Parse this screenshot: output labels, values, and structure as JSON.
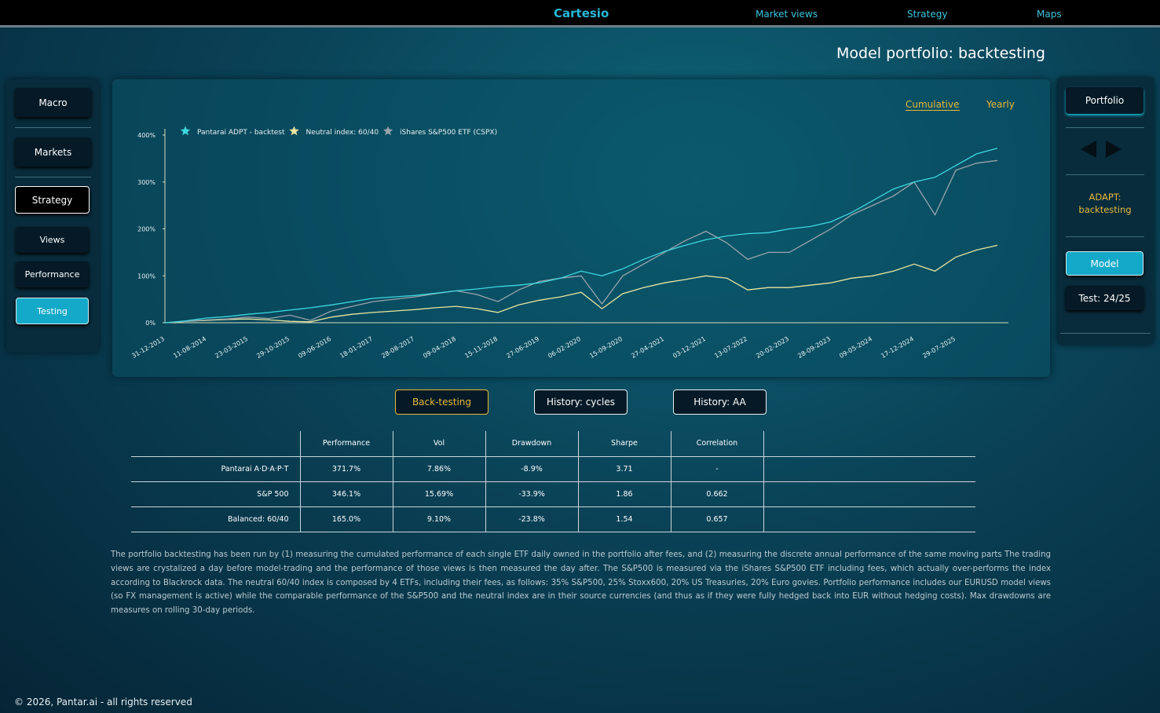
{
  "nav": {
    "brand": "Cartesio",
    "links": [
      "Market views",
      "Strategy",
      "Maps"
    ]
  },
  "page_title": "Model portfolio: backtesting",
  "left_menu": [
    "Macro",
    "Markets",
    "Strategy",
    "Views",
    "Performance",
    "Testing"
  ],
  "right_panel": {
    "portfolio": "Portfolio",
    "label": "ADAPT: backtesting",
    "model": "Model",
    "test": "Test: 24/25"
  },
  "chart_tabs": [
    "Cumulative",
    "Yearly"
  ],
  "chart_data": {
    "type": "line",
    "categories": [
      "31-12-2013",
      null,
      "11-08-2014",
      null,
      "23-03-2015",
      null,
      "29-10-2015",
      null,
      "09-06-2016",
      null,
      "18-01-2017",
      null,
      "28-08-2017",
      null,
      "09-04-2018",
      null,
      "15-11-2018",
      null,
      "27-06-2019",
      null,
      "06-02-2020",
      null,
      "15-09-2020",
      null,
      "27-04-2021",
      null,
      "03-12-2021",
      null,
      "13-07-2022",
      null,
      "20-02-2023",
      null,
      "28-09-2023",
      null,
      "09-05-2024",
      null,
      "17-12-2024",
      null,
      "29-07-2025",
      null,
      null
    ],
    "series": [
      {
        "name": "Pantarai ADPT - backtest",
        "color": "#3ed8e0",
        "values": [
          0,
          4,
          10,
          13,
          18,
          22,
          27,
          32,
          38,
          45,
          52,
          55,
          58,
          63,
          68,
          72,
          77,
          80,
          85,
          95,
          110,
          100,
          115,
          135,
          152,
          165,
          177,
          185,
          190,
          192,
          200,
          205,
          215,
          235,
          260,
          285,
          300,
          310,
          335,
          360,
          372
        ]
      },
      {
        "name": "Neutral index: 60/40",
        "color": "#e8e6a0",
        "values": [
          0,
          3,
          5,
          7,
          8,
          6,
          3,
          2,
          12,
          18,
          22,
          25,
          28,
          32,
          35,
          30,
          22,
          38,
          48,
          55,
          65,
          30,
          62,
          75,
          85,
          92,
          100,
          95,
          70,
          75,
          75,
          80,
          85,
          95,
          100,
          110,
          125,
          110,
          140,
          155,
          165
        ]
      },
      {
        "name": "iShares S&P500 ETF (CSPX)",
        "color": "#9aa4ab",
        "values": [
          0,
          3,
          6,
          8,
          12,
          9,
          16,
          5,
          25,
          35,
          45,
          50,
          55,
          62,
          68,
          60,
          45,
          70,
          88,
          95,
          100,
          40,
          100,
          125,
          150,
          175,
          195,
          170,
          135,
          150,
          150,
          175,
          200,
          230,
          250,
          270,
          300,
          230,
          325,
          340,
          346
        ]
      }
    ],
    "ylim": [
      0,
      400
    ],
    "yticks": [
      {
        "value": 0,
        "label": "0%"
      },
      {
        "value": 100,
        "label": "100%"
      },
      {
        "value": 200,
        "label": "200%"
      },
      {
        "value": 300,
        "label": "300%"
      },
      {
        "value": 400,
        "label": "400%"
      }
    ],
    "grid": false
  },
  "buttons": [
    "Back-testing",
    "History: cycles",
    "History: AA"
  ],
  "table": {
    "columns": [
      "Performance",
      "Vol",
      "Drawdown",
      "Sharpe",
      "Correlation"
    ],
    "rows": [
      [
        "Pantarai A·D·A·P·T",
        "371.7%",
        "7.86%",
        "-8.9%",
        "3.71",
        "-"
      ],
      [
        "S&P 500",
        "346.1%",
        "15.69%",
        "-33.9%",
        "1.86",
        "0.662"
      ],
      [
        "Balanced: 60/40",
        "165.0%",
        "9.10%",
        "-23.8%",
        "1.54",
        "0.657"
      ]
    ]
  },
  "note": "The portfolio backtesting has been run by (1) measuring the cumulated performance of each single ETF daily owned in the portfolio after fees, and (2) measuring the discrete annual performance of the same moving parts The trading views are crystalized a day before model-trading and the performance of those views is then measured the day after. The S&P500 is measured via the iShares S&P500 ETF including fees, which actually over-performs the index according to Blackrock data. The neutral 60/40 index is composed by 4 ETFs, including their fees, as follows: 35% S&P500, 25% Stoxx600, 20% US Treasuries, 20% Euro govies. Portfolio performance includes our EURUSD model views (so FX management is active) while the comparable performance of the S&P500 and the neutral index are in their source currencies (and thus as if they were fully hedged back into EUR without hedging costs). Max drawdowns are measures on rolling 30-day periods.",
  "footer": "© 2026, Pantar.ai - all rights reserved"
}
